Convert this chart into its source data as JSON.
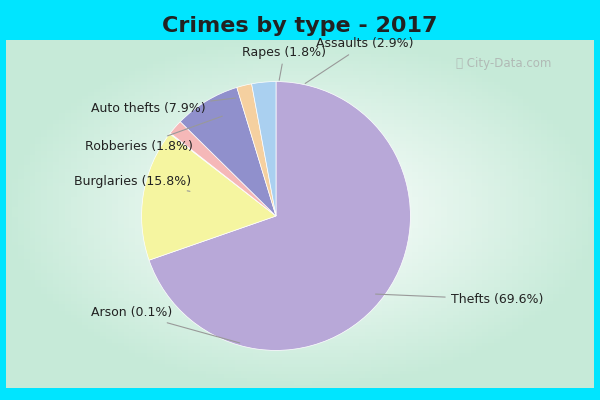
{
  "title": "Crimes by type - 2017",
  "slices": [
    {
      "label": "Thefts",
      "pct": 69.6,
      "color": "#b8a8d8"
    },
    {
      "label": "Burglaries",
      "pct": 15.8,
      "color": "#f5f5a0"
    },
    {
      "label": "Arson",
      "pct": 0.1,
      "color": "#c8e8c0"
    },
    {
      "label": "Robberies",
      "pct": 1.8,
      "color": "#f5b8b8"
    },
    {
      "label": "Auto thefts",
      "pct": 7.9,
      "color": "#9090cc"
    },
    {
      "label": "Rapes",
      "pct": 1.8,
      "color": "#f5d0a0"
    },
    {
      "label": "Assaults",
      "pct": 2.9,
      "color": "#aad0f0"
    }
  ],
  "background_border": "#00e5ff",
  "background_inner": "#c8e8d8",
  "title_fontsize": 16,
  "label_fontsize": 9,
  "watermark": "ⓘ City-Data.com",
  "border_width": 5
}
